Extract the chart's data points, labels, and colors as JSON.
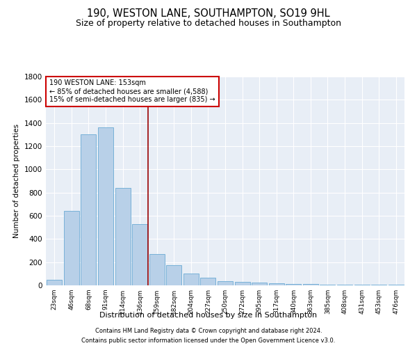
{
  "title1": "190, WESTON LANE, SOUTHAMPTON, SO19 9HL",
  "title2": "Size of property relative to detached houses in Southampton",
  "xlabel": "Distribution of detached houses by size in Southampton",
  "ylabel": "Number of detached properties",
  "categories": [
    "23sqm",
    "46sqm",
    "68sqm",
    "91sqm",
    "114sqm",
    "136sqm",
    "159sqm",
    "182sqm",
    "204sqm",
    "227sqm",
    "250sqm",
    "272sqm",
    "295sqm",
    "317sqm",
    "340sqm",
    "363sqm",
    "385sqm",
    "408sqm",
    "431sqm",
    "453sqm",
    "476sqm"
  ],
  "values": [
    50,
    640,
    1300,
    1360,
    840,
    530,
    270,
    175,
    100,
    65,
    35,
    30,
    25,
    18,
    14,
    10,
    7,
    5,
    4,
    4,
    4
  ],
  "bar_color": "#b8d0e8",
  "bar_edge_color": "#6aaad4",
  "vline_x": 5.5,
  "vline_color": "#990000",
  "annotation_title": "190 WESTON LANE: 153sqm",
  "annotation_line1": "← 85% of detached houses are smaller (4,588)",
  "annotation_line2": "15% of semi-detached houses are larger (835) →",
  "annotation_box_color": "#ffffff",
  "annotation_box_edge": "#cc0000",
  "ylim": [
    0,
    1800
  ],
  "yticks": [
    0,
    200,
    400,
    600,
    800,
    1000,
    1200,
    1400,
    1600,
    1800
  ],
  "footnote1": "Contains HM Land Registry data © Crown copyright and database right 2024.",
  "footnote2": "Contains public sector information licensed under the Open Government Licence v3.0.",
  "background_color": "#e8eef6",
  "title1_fontsize": 10.5,
  "title2_fontsize": 9
}
